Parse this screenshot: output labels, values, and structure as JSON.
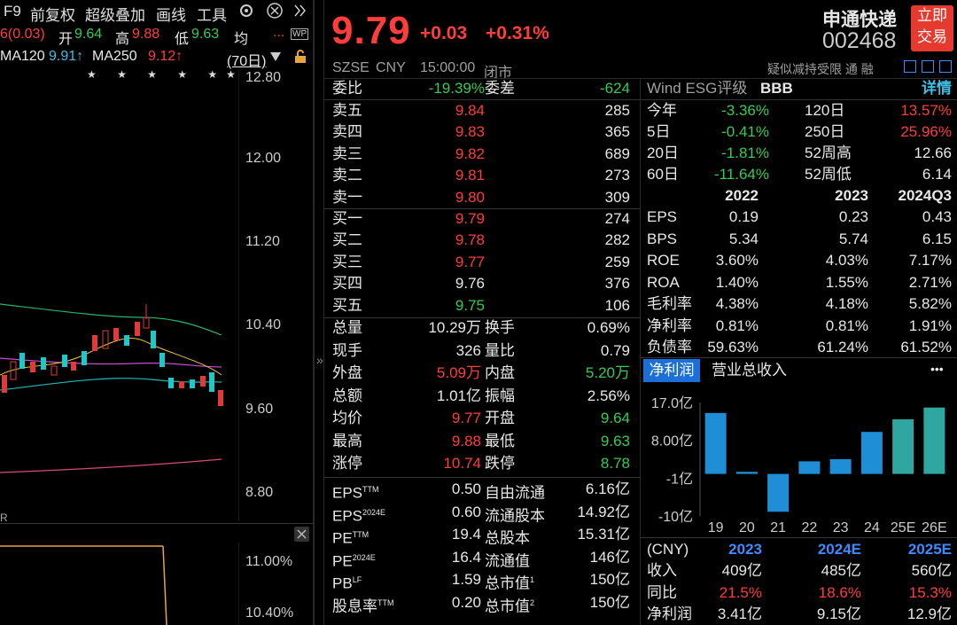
{
  "toolbar": {
    "f9": "F9",
    "fuquan": "前复权",
    "overlay": "超级叠加",
    "draw": "画线",
    "tools": "工具",
    "gear_icon": "gear-icon",
    "more_icon": "double-chevron-icon"
  },
  "ohlc": {
    "change_partial": "6(0.03)",
    "open_label": "开",
    "open": "9.64",
    "high_label": "高",
    "high": "9.88",
    "low_label": "低",
    "low": "9.63",
    "avg_label": "均",
    "more": "...",
    "wp": "WP"
  },
  "ma": {
    "ma120_label": "MA120",
    "ma120": "9.91↑",
    "ma250_label": "MA250",
    "ma250": "9.12↑",
    "period": "(70日)",
    "stars": "★ ★ ★ ★ ★★"
  },
  "price_axis": [
    "12.80",
    "12.00",
    "11.20",
    "10.40",
    "9.60",
    "8.80"
  ],
  "sub_axis": [
    "11.00%",
    "10.40%"
  ],
  "sub_partial_label": "R",
  "header": {
    "price": "9.79",
    "change": "+0.03",
    "change_pct": "+0.31%",
    "name": "申通快递",
    "code": "002468",
    "trade_btn_line1": "立即",
    "trade_btn_line2": "交易",
    "exchange": "SZSE",
    "currency": "CNY",
    "time": "15:00:00",
    "status": "闭市",
    "tags": "疑似减持受限 通 融"
  },
  "committee": {
    "ratio_label": "委比",
    "ratio": "-19.39%",
    "diff_label": "委差",
    "diff": "-624"
  },
  "asks": [
    {
      "label": "卖五",
      "price": "9.84",
      "vol": "285"
    },
    {
      "label": "卖四",
      "price": "9.83",
      "vol": "365"
    },
    {
      "label": "卖三",
      "price": "9.82",
      "vol": "689"
    },
    {
      "label": "卖二",
      "price": "9.81",
      "vol": "273"
    },
    {
      "label": "卖一",
      "price": "9.80",
      "vol": "309"
    }
  ],
  "bids": [
    {
      "label": "买一",
      "price": "9.79",
      "vol": "274"
    },
    {
      "label": "买二",
      "price": "9.78",
      "vol": "282"
    },
    {
      "label": "买三",
      "price": "9.77",
      "vol": "259"
    },
    {
      "label": "买四",
      "price": "9.76",
      "vol": "376"
    },
    {
      "label": "买五",
      "price": "9.75",
      "vol": "106"
    }
  ],
  "stats": [
    {
      "l1": "总量",
      "v1": "10.29万",
      "l2": "换手",
      "v2": "0.69%"
    },
    {
      "l1": "现手",
      "v1": "326",
      "l2": "量比",
      "v2": "0.79"
    },
    {
      "l1": "外盘",
      "v1": "5.09万",
      "l2": "内盘",
      "v2": "5.20万"
    },
    {
      "l1": "总额",
      "v1": "1.01亿",
      "l2": "振幅",
      "v2": "2.56%"
    },
    {
      "l1": "均价",
      "v1": "9.77",
      "l2": "开盘",
      "v2": "9.64"
    },
    {
      "l1": "最高",
      "v1": "9.88",
      "l2": "最低",
      "v2": "9.63"
    },
    {
      "l1": "涨停",
      "v1": "10.74",
      "l2": "跌停",
      "v2": "8.78"
    }
  ],
  "valuation": [
    {
      "l1": "EPS",
      "s1": "TTM",
      "v1": "0.50",
      "l2": "自由流通",
      "s2": "",
      "v2": "6.16亿"
    },
    {
      "l1": "EPS",
      "s1": "2024E",
      "v1": "0.60",
      "l2": "流通股本",
      "s2": "",
      "v2": "14.92亿"
    },
    {
      "l1": "PE",
      "s1": "TTM",
      "v1": "19.4",
      "l2": "总股本",
      "s2": "",
      "v2": "15.31亿"
    },
    {
      "l1": "PE",
      "s1": "2024E",
      "v1": "16.4",
      "l2": "流通值",
      "s2": "",
      "v2": "146亿"
    },
    {
      "l1": "PB",
      "s1": "LF",
      "v1": "1.59",
      "l2": "总市值",
      "s2": "1",
      "v2": "150亿"
    },
    {
      "l1": "股息率",
      "s1": "TTM",
      "v1": "0.20",
      "l2": "总市值",
      "s2": "2",
      "v2": "150亿"
    }
  ],
  "esg": {
    "label": "Wind ESG评级",
    "rating": "BBB",
    "detail": "详情"
  },
  "returns": [
    {
      "l1": "今年",
      "v1": "-3.36%",
      "l2": "120日",
      "v2": "13.57%"
    },
    {
      "l1": "5日",
      "v1": "-0.41%",
      "l2": "250日",
      "v2": "25.96%"
    },
    {
      "l1": "20日",
      "v1": "-1.81%",
      "l2": "52周高",
      "v2": "12.66"
    },
    {
      "l1": "60日",
      "v1": "-11.64%",
      "l2": "52周低",
      "v2": "6.14"
    }
  ],
  "fin_years": [
    "2022",
    "2023",
    "2024Q3"
  ],
  "fin_rows": [
    {
      "label": "EPS",
      "vals": [
        "0.19",
        "0.23",
        "0.43"
      ]
    },
    {
      "label": "BPS",
      "vals": [
        "5.34",
        "5.74",
        "6.15"
      ]
    },
    {
      "label": "ROE",
      "vals": [
        "3.60%",
        "4.03%",
        "7.17%"
      ]
    },
    {
      "label": "ROA",
      "vals": [
        "1.40%",
        "1.55%",
        "2.71%"
      ]
    },
    {
      "label": "毛利率",
      "vals": [
        "4.38%",
        "4.18%",
        "5.82%"
      ]
    },
    {
      "label": "净利率",
      "vals": [
        "0.81%",
        "0.81%",
        "1.91%"
      ]
    },
    {
      "label": "负债率",
      "vals": [
        "59.63%",
        "61.24%",
        "61.52%"
      ]
    }
  ],
  "bar_tabs": {
    "tab1": "净利润",
    "tab2": "营业总收入",
    "more": "•••"
  },
  "chart_data": {
    "type": "bar",
    "categories": [
      "19",
      "20",
      "21",
      "22",
      "23",
      "24",
      "25E",
      "26E"
    ],
    "values": [
      14.5,
      0.5,
      -9.0,
      3.0,
      3.5,
      10.0,
      13.0,
      15.8
    ],
    "ytick_labels": [
      "17.0亿",
      "8.00亿",
      "-1亿",
      "-10亿"
    ],
    "ylim": [
      -10,
      17
    ],
    "colors": {
      "actual": "#1e8fd6",
      "estimate": "#2fa7a0"
    }
  },
  "forecast": {
    "unit": "(CNY)",
    "years": [
      "2023",
      "2024E",
      "2025E"
    ],
    "rows": [
      {
        "label": "收入",
        "vals": [
          "409亿",
          "485亿",
          "560亿"
        ]
      },
      {
        "label": "同比",
        "vals": [
          "21.5%",
          "18.6%",
          "15.3%"
        ]
      },
      {
        "label": "净利润",
        "vals": [
          "3.41亿",
          "9.15亿",
          "12.9亿"
        ]
      }
    ]
  }
}
